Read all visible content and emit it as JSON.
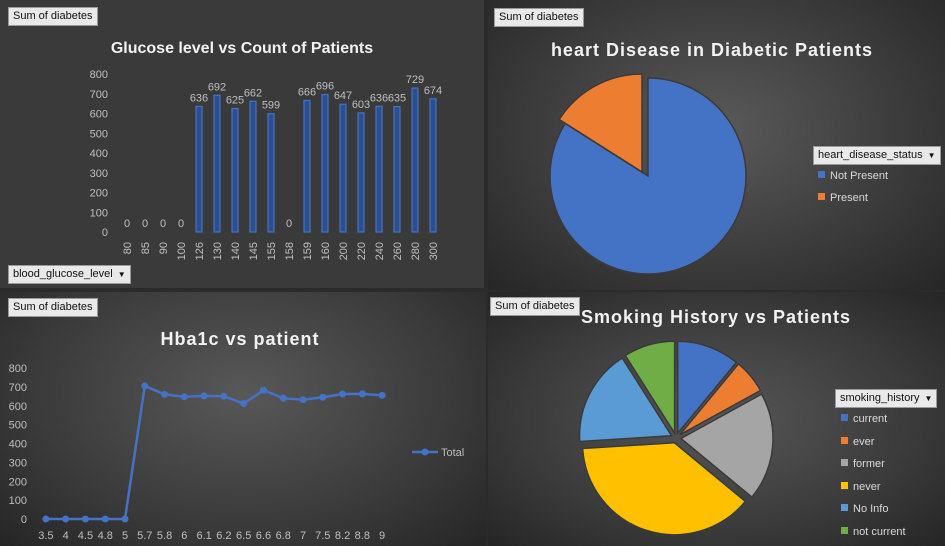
{
  "charts": {
    "glucose": {
      "field_button": "Sum of diabetes",
      "axis_button": "blood_glucose_level",
      "chart_data": {
        "type": "bar",
        "title": "Glucose level vs Count of Patients",
        "categories": [
          "80",
          "85",
          "90",
          "100",
          "126",
          "130",
          "140",
          "145",
          "155",
          "158",
          "159",
          "160",
          "200",
          "220",
          "240",
          "260",
          "280",
          "300"
        ],
        "values": [
          0,
          0,
          0,
          0,
          636,
          692,
          625,
          662,
          599,
          0,
          666,
          696,
          647,
          603,
          636,
          635,
          729,
          674
        ],
        "yticks": [
          0,
          100,
          200,
          300,
          400,
          500,
          600,
          700,
          800
        ],
        "ylim": [
          0,
          800
        ],
        "data_labels": true
      }
    },
    "heart": {
      "field_button": "Sum of diabetes",
      "legend_button": "heart_disease_status",
      "chart_data": {
        "type": "pie",
        "title": "heart Disease in Diabetic Patients",
        "labels": [
          "Not Present",
          "Present"
        ],
        "values": [
          84,
          16
        ],
        "colors": [
          "#4472c4",
          "#ed7d31"
        ]
      }
    },
    "hba1c": {
      "field_button": "Sum of diabetes",
      "chart_data": {
        "type": "line",
        "title": "Hba1c vs patient",
        "categories": [
          "3.5",
          "4",
          "4.5",
          "4.8",
          "5",
          "5.7",
          "5.8",
          "6",
          "6.1",
          "6.2",
          "6.5",
          "6.6",
          "6.8",
          "7",
          "7.5",
          "8.2",
          "8.8",
          "9"
        ],
        "series": [
          {
            "name": "Total",
            "values": [
              0,
              0,
              0,
              0,
              0,
              705,
              660,
              648,
              652,
              650,
              612,
              682,
              640,
              632,
              645,
              662,
              663,
              655
            ],
            "color": "#4472c4"
          }
        ],
        "yticks": [
          0,
          100,
          200,
          300,
          400,
          500,
          600,
          700,
          800
        ],
        "ylim": [
          0,
          800
        ]
      }
    },
    "smoking": {
      "field_button": "Sum of diabetes",
      "legend_button": "smoking_history",
      "chart_data": {
        "type": "pie",
        "title": "Smoking History vs Patients",
        "labels": [
          "current",
          "ever",
          "former",
          "never",
          "No Info",
          "not current"
        ],
        "values": [
          11,
          6,
          19,
          38,
          17,
          9
        ],
        "colors": [
          "#4472c4",
          "#ed7d31",
          "#a5a5a5",
          "#ffc000",
          "#5b9bd5",
          "#70ad47"
        ]
      }
    }
  }
}
